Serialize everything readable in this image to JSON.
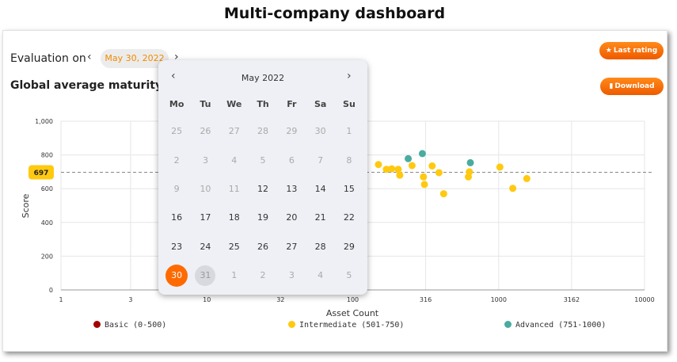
{
  "page": {
    "title": "Multi-company dashboard"
  },
  "header": {
    "evaluation_label": "Evaluation on",
    "prev_icon": "chevron-left-icon",
    "next_icon": "chevron-right-icon",
    "selected_date": "May 30, 2022",
    "last_rating_label": "Last rating",
    "last_rating_icon": "star-icon",
    "download_label": "Download",
    "download_icon": "file-icon",
    "accent_color": "#ff6a00"
  },
  "section": {
    "title": "Global average maturity lev"
  },
  "calendar": {
    "month_label": "May  2022",
    "weekdays": [
      "Mo",
      "Tu",
      "We",
      "Th",
      "Fr",
      "Sa",
      "Su"
    ],
    "weeks": [
      [
        "25",
        "26",
        "27",
        "28",
        "29",
        "30",
        "1"
      ],
      [
        "2",
        "3",
        "4",
        "5",
        "6",
        "7",
        "8"
      ],
      [
        "9",
        "10",
        "11",
        "12",
        "13",
        "14",
        "15"
      ],
      [
        "16",
        "17",
        "18",
        "19",
        "20",
        "21",
        "22"
      ],
      [
        "23",
        "24",
        "25",
        "26",
        "27",
        "28",
        "29"
      ],
      [
        "30",
        "31",
        "1",
        "2",
        "3",
        "4",
        "5"
      ]
    ],
    "disabled": [
      [
        true,
        true,
        true,
        true,
        true,
        true,
        true
      ],
      [
        true,
        true,
        true,
        true,
        true,
        true,
        true
      ],
      [
        true,
        true,
        true,
        false,
        false,
        false,
        false
      ],
      [
        false,
        false,
        false,
        false,
        false,
        false,
        false
      ],
      [
        false,
        false,
        false,
        false,
        false,
        false,
        false
      ],
      [
        false,
        true,
        true,
        true,
        true,
        true,
        true
      ]
    ],
    "selected_day": "30",
    "today_day": "31"
  },
  "chart_data": {
    "type": "scatter",
    "xlabel": "Asset Count",
    "ylabel": "Score",
    "x_scale": "log",
    "xlim": [
      1,
      10000
    ],
    "ylim": [
      0,
      1000
    ],
    "x_ticks": [
      "1",
      "3",
      "10",
      "32",
      "100",
      "316",
      "1000",
      "3162",
      "10000"
    ],
    "x_tick_values": [
      1,
      3,
      10,
      32,
      100,
      316,
      1000,
      3162,
      10000
    ],
    "y_ticks": [
      "0",
      "200",
      "400",
      "600",
      "800",
      "1,000"
    ],
    "y_tick_values": [
      0,
      200,
      400,
      600,
      800,
      1000
    ],
    "average": {
      "value": 697,
      "label": "697"
    },
    "grid": true,
    "legend_position": "bottom",
    "series": [
      {
        "name": "Basic (0-500)",
        "color": "#a40000",
        "points": []
      },
      {
        "name": "Intermediate (501-750)",
        "color": "#ffc90f",
        "points": [
          [
            150,
            743
          ],
          [
            170,
            715
          ],
          [
            185,
            718
          ],
          [
            205,
            715
          ],
          [
            210,
            680
          ],
          [
            255,
            737
          ],
          [
            305,
            670
          ],
          [
            310,
            625
          ],
          [
            350,
            735
          ],
          [
            390,
            695
          ],
          [
            420,
            570
          ],
          [
            620,
            670
          ],
          [
            630,
            700
          ],
          [
            1020,
            728
          ],
          [
            1250,
            602
          ],
          [
            1560,
            660
          ]
        ]
      },
      {
        "name": "Advanced (751-1000)",
        "color": "#4aaba0",
        "points": [
          [
            240,
            778
          ],
          [
            300,
            808
          ],
          [
            640,
            754
          ]
        ]
      }
    ]
  }
}
